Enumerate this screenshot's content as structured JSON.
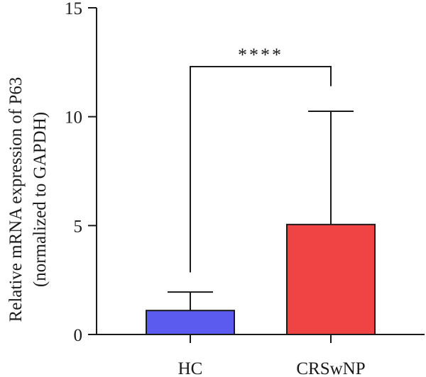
{
  "chart_data": {
    "type": "bar",
    "categories": [
      "HC",
      "CRSwNP"
    ],
    "values": [
      1.1,
      5.05
    ],
    "error_upper": [
      1.95,
      10.25
    ],
    "colors": [
      "#5b5bf0",
      "#f04444"
    ],
    "ylabel_lines": [
      "Relative mRNA expression of P63",
      "(normalized to GAPDH)"
    ],
    "ylim": [
      0,
      15
    ],
    "yticks": [
      0,
      5,
      10,
      15
    ],
    "ytick_labels": [
      "0",
      "5",
      "10",
      "15"
    ],
    "significance": {
      "label": "****",
      "from": 0,
      "to": 1,
      "level": 12.3,
      "left_drop_to": 2.85,
      "right_drop_to": 11.4
    },
    "grid": false,
    "legend": "none"
  }
}
